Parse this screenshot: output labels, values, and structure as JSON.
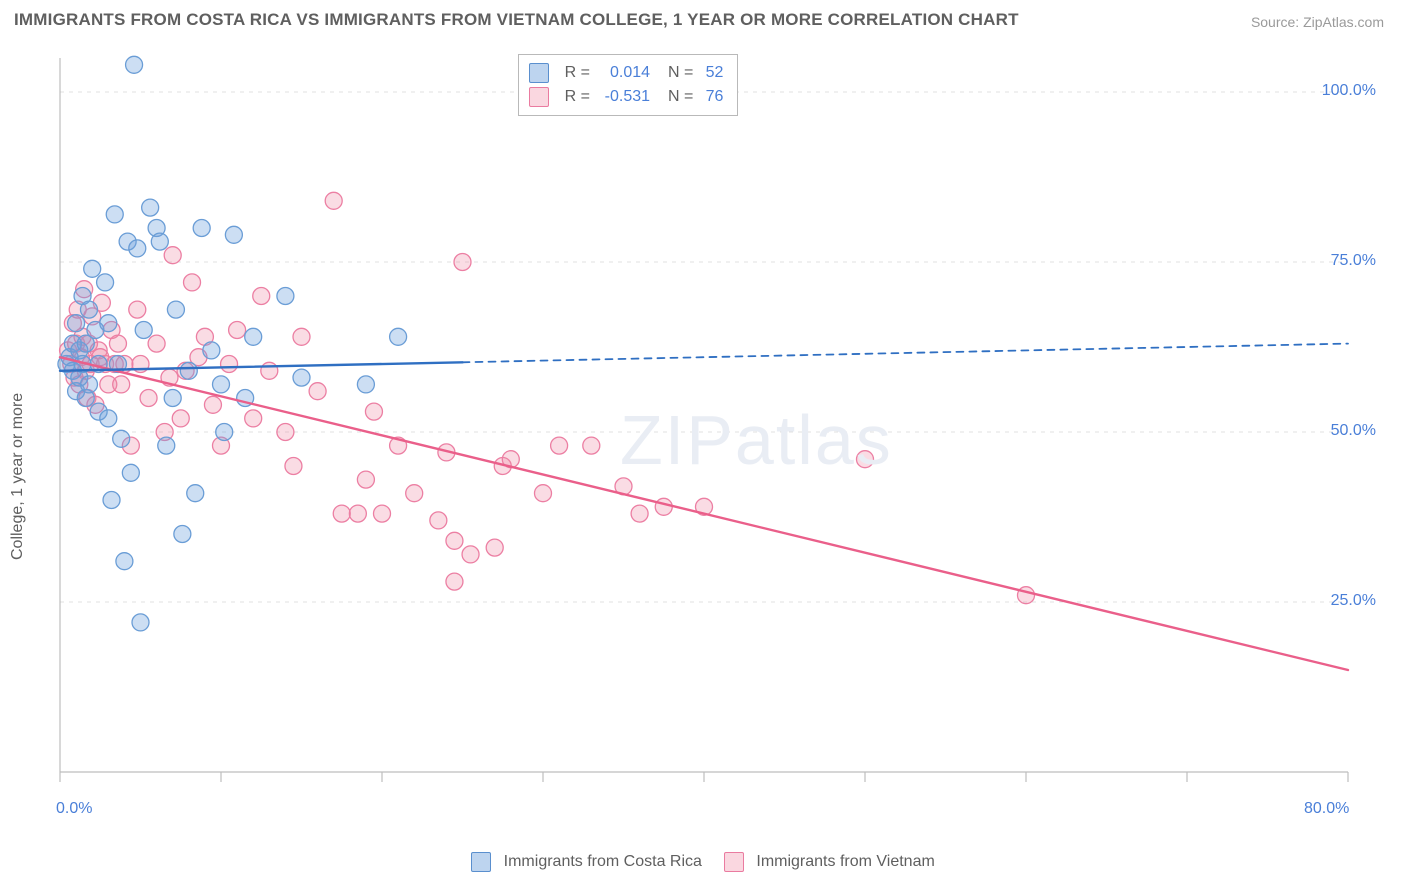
{
  "title": "IMMIGRANTS FROM COSTA RICA VS IMMIGRANTS FROM VIETNAM COLLEGE, 1 YEAR OR MORE CORRELATION CHART",
  "source": "Source: ZipAtlas.com",
  "watermark": "ZIPatlas",
  "chart": {
    "type": "scatter",
    "y_axis_label": "College, 1 year or more",
    "xlim": [
      0,
      80
    ],
    "ylim": [
      0,
      105
    ],
    "y_ticks": [
      25,
      50,
      75,
      100
    ],
    "y_tick_labels": [
      "25.0%",
      "50.0%",
      "75.0%",
      "100.0%"
    ],
    "x_ticks": [
      0,
      10,
      20,
      30,
      40,
      50,
      60,
      70,
      80
    ],
    "x_tick_start_label": "0.0%",
    "x_tick_end_label": "80.0%",
    "grid_color": "#e0e0e0",
    "axis_color": "#bdbdbd",
    "marker_radius": 8.5,
    "marker_stroke_width": 1.3,
    "line_width": 2.4,
    "dash_pattern": "7,6",
    "series": {
      "blue": {
        "label": "Immigrants from Costa Rica",
        "R": "0.014",
        "N": "52",
        "stroke": "#6a9dd6",
        "fill": "rgba(108,160,220,0.35)",
        "line_color": "#2f6fc2",
        "solid_x_range": [
          0,
          25
        ],
        "trend": {
          "x1": 0,
          "y1": 59,
          "x2": 80,
          "y2": 63
        },
        "points": [
          [
            0.4,
            60
          ],
          [
            0.6,
            61
          ],
          [
            0.8,
            63
          ],
          [
            0.8,
            59
          ],
          [
            1.0,
            56
          ],
          [
            1.0,
            66
          ],
          [
            1.2,
            62
          ],
          [
            1.2,
            58
          ],
          [
            1.4,
            60
          ],
          [
            1.4,
            70
          ],
          [
            1.6,
            63
          ],
          [
            1.6,
            55
          ],
          [
            1.8,
            68
          ],
          [
            1.8,
            57
          ],
          [
            2.0,
            74
          ],
          [
            2.2,
            65
          ],
          [
            2.4,
            53
          ],
          [
            2.4,
            60
          ],
          [
            2.8,
            72
          ],
          [
            3.0,
            66
          ],
          [
            3.0,
            52
          ],
          [
            3.2,
            40
          ],
          [
            3.4,
            82
          ],
          [
            3.6,
            60
          ],
          [
            3.8,
            49
          ],
          [
            4.0,
            31
          ],
          [
            4.2,
            78
          ],
          [
            4.4,
            44
          ],
          [
            4.6,
            104
          ],
          [
            4.8,
            77
          ],
          [
            5.2,
            65
          ],
          [
            5.6,
            83
          ],
          [
            6.0,
            80
          ],
          [
            6.2,
            78
          ],
          [
            6.6,
            48
          ],
          [
            7.0,
            55
          ],
          [
            7.2,
            68
          ],
          [
            7.6,
            35
          ],
          [
            8.0,
            59
          ],
          [
            8.4,
            41
          ],
          [
            8.8,
            80
          ],
          [
            9.4,
            62
          ],
          [
            10.0,
            57
          ],
          [
            10.2,
            50
          ],
          [
            10.8,
            79
          ],
          [
            11.5,
            55
          ],
          [
            12.0,
            64
          ],
          [
            14.0,
            70
          ],
          [
            15.0,
            58
          ],
          [
            19.0,
            57
          ],
          [
            21.0,
            64
          ],
          [
            5.0,
            22
          ]
        ]
      },
      "pink": {
        "label": "Immigrants from Vietnam",
        "R": "-0.531",
        "N": "76",
        "stroke": "#ec7fa3",
        "fill": "rgba(240,140,165,0.30)",
        "line_color": "#ea5f8a",
        "solid_x_range": [
          0,
          80
        ],
        "trend": {
          "x1": 0,
          "y1": 61,
          "x2": 80,
          "y2": 15
        },
        "points": [
          [
            0.5,
            62
          ],
          [
            0.7,
            60
          ],
          [
            0.8,
            66
          ],
          [
            0.9,
            58
          ],
          [
            1.0,
            63
          ],
          [
            1.1,
            68
          ],
          [
            1.2,
            57
          ],
          [
            1.3,
            61
          ],
          [
            1.4,
            64
          ],
          [
            1.5,
            71
          ],
          [
            1.6,
            59
          ],
          [
            1.7,
            55
          ],
          [
            1.8,
            63
          ],
          [
            1.9,
            60
          ],
          [
            2.0,
            67
          ],
          [
            2.2,
            54
          ],
          [
            2.4,
            62
          ],
          [
            2.6,
            69
          ],
          [
            2.8,
            60
          ],
          [
            3.0,
            57
          ],
          [
            3.2,
            65
          ],
          [
            3.4,
            60
          ],
          [
            3.6,
            63
          ],
          [
            3.8,
            57
          ],
          [
            4.0,
            60
          ],
          [
            4.4,
            48
          ],
          [
            4.8,
            68
          ],
          [
            5.0,
            60
          ],
          [
            5.5,
            55
          ],
          [
            6.0,
            63
          ],
          [
            6.5,
            50
          ],
          [
            7.0,
            76
          ],
          [
            7.5,
            52
          ],
          [
            7.8,
            59
          ],
          [
            8.2,
            72
          ],
          [
            8.6,
            61
          ],
          [
            6.8,
            58
          ],
          [
            9.0,
            64
          ],
          [
            9.5,
            54
          ],
          [
            10.0,
            48
          ],
          [
            10.5,
            60
          ],
          [
            11.0,
            65
          ],
          [
            12.0,
            52
          ],
          [
            12.5,
            70
          ],
          [
            13.0,
            59
          ],
          [
            14.0,
            50
          ],
          [
            14.5,
            45
          ],
          [
            15.0,
            64
          ],
          [
            16.0,
            56
          ],
          [
            17.0,
            84
          ],
          [
            17.5,
            38
          ],
          [
            18.5,
            38
          ],
          [
            19.0,
            43
          ],
          [
            19.5,
            53
          ],
          [
            20.0,
            38
          ],
          [
            21.0,
            48
          ],
          [
            22.0,
            41
          ],
          [
            23.5,
            37
          ],
          [
            24.0,
            47
          ],
          [
            24.5,
            34
          ],
          [
            24.5,
            28
          ],
          [
            25.5,
            32
          ],
          [
            27.0,
            33
          ],
          [
            27.5,
            45
          ],
          [
            25.0,
            75
          ],
          [
            28.0,
            46
          ],
          [
            30.0,
            41
          ],
          [
            31.0,
            48
          ],
          [
            33.0,
            48
          ],
          [
            35.0,
            42
          ],
          [
            36.0,
            38
          ],
          [
            37.5,
            39
          ],
          [
            40.0,
            39
          ],
          [
            50.0,
            46
          ],
          [
            60.0,
            26
          ],
          [
            2.5,
            61
          ]
        ]
      }
    }
  },
  "legend_top": {
    "r_label": "R  =",
    "n_label": "N  ="
  },
  "legend_bottom": {
    "items": [
      "Immigrants from Costa Rica",
      "Immigrants from Vietnam"
    ]
  }
}
